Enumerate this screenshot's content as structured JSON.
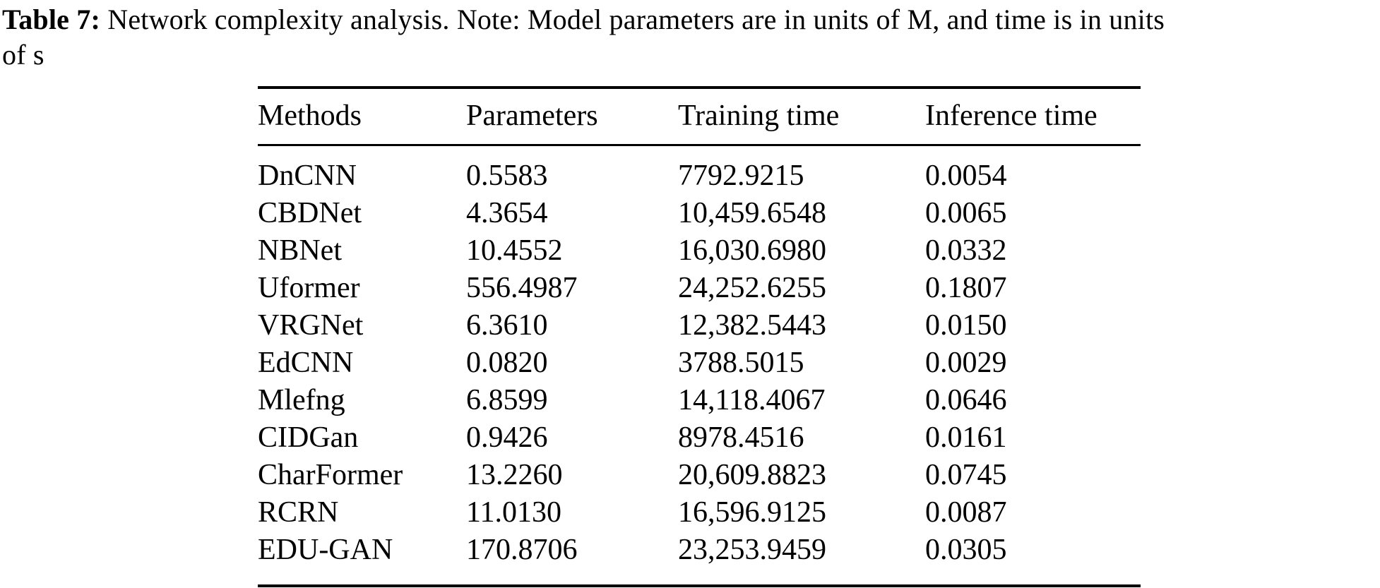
{
  "page": {
    "background_color": "#ffffff",
    "text_color": "#000000"
  },
  "caption": {
    "label": "Table 7:",
    "line1": " Network complexity analysis. Note: Model parameters are in units of M, and time is in units",
    "line2": "of s"
  },
  "table": {
    "columns": [
      "Methods",
      "Parameters",
      "Training time",
      "Inference time"
    ],
    "rows": [
      [
        "DnCNN",
        "0.5583",
        "7792.9215",
        "0.0054"
      ],
      [
        "CBDNet",
        "4.3654",
        "10,459.6548",
        "0.0065"
      ],
      [
        "NBNet",
        "10.4552",
        "16,030.6980",
        "0.0332"
      ],
      [
        "Uformer",
        "556.4987",
        "24,252.6255",
        "0.1807"
      ],
      [
        "VRGNet",
        "6.3610",
        "12,382.5443",
        "0.0150"
      ],
      [
        "EdCNN",
        "0.0820",
        "3788.5015",
        "0.0029"
      ],
      [
        "Mlefng",
        "6.8599",
        "14,118.4067",
        "0.0646"
      ],
      [
        "CIDGan",
        "0.9426",
        "8978.4516",
        "0.0161"
      ],
      [
        "CharFormer",
        "13.2260",
        "20,609.8823",
        "0.0745"
      ],
      [
        "RCRN",
        "11.0130",
        "16,596.9125",
        "0.0087"
      ],
      [
        "EDU-GAN",
        "170.8706",
        "23,253.9459",
        "0.0305"
      ]
    ]
  }
}
